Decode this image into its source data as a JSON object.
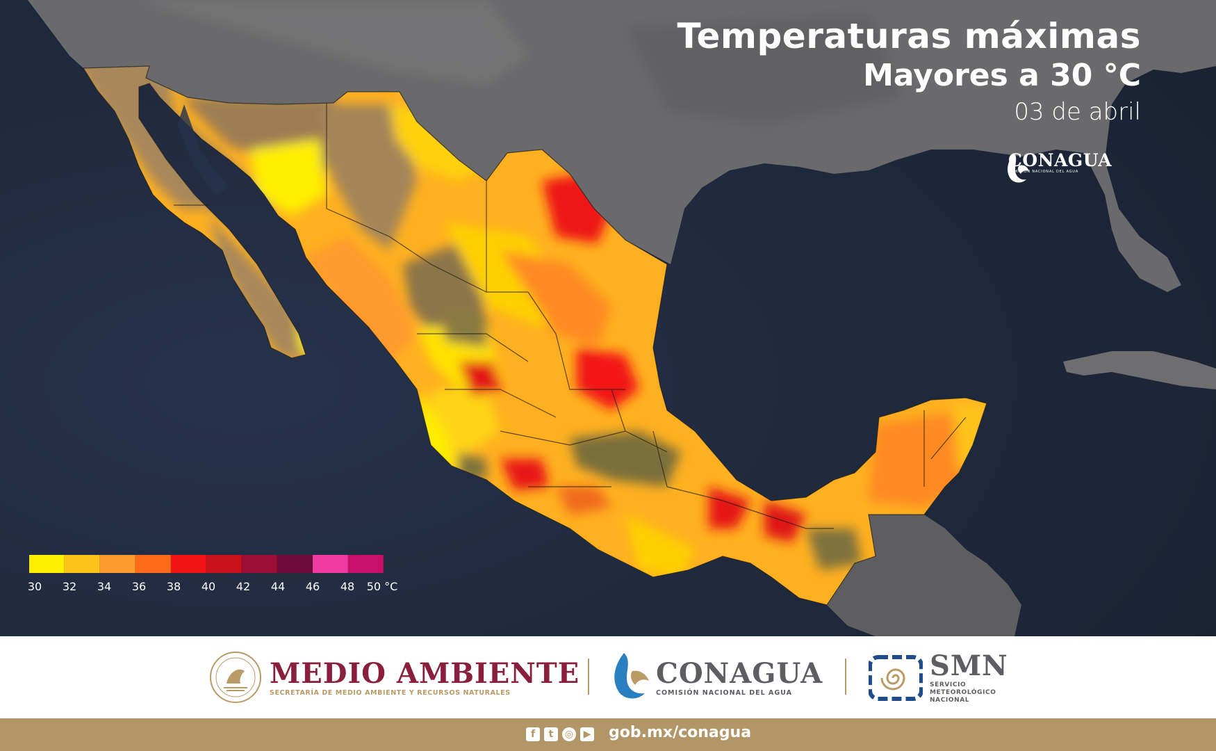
{
  "header": {
    "title": "Temperaturas máximas",
    "subtitle": "Mayores a 30 °C",
    "date": "03 de abril"
  },
  "map_logo": {
    "name": "CONAGUA",
    "tagline": "COMISIÓN NACIONAL DEL AGUA",
    "icon": "conagua-drop-icon"
  },
  "legend": {
    "unit": "°C",
    "labels": [
      "30",
      "32",
      "34",
      "36",
      "38",
      "40",
      "42",
      "44",
      "46",
      "48",
      "50 °C"
    ],
    "colors": [
      "#ffee00",
      "#ffc21a",
      "#ff9a2e",
      "#ff6a1a",
      "#f01414",
      "#c8101a",
      "#9a0e35",
      "#6c0a38",
      "#f03aa0",
      "#c8106a"
    ]
  },
  "colors": {
    "ocean": "#1f2a3d",
    "land_outside": "#6e6e6e",
    "desert": "#a8875a",
    "below_30": "#7a6e3a"
  },
  "footer": {
    "medio_ambiente": {
      "name": "MEDIO AMBIENTE",
      "sub": "SECRETARÍA DE MEDIO AMBIENTE Y RECURSOS NATURALES",
      "icon": "mexico-coat-of-arms-icon"
    },
    "conagua": {
      "name": "CONAGUA",
      "sub": "COMISIÓN NACIONAL DEL AGUA",
      "icon": "conagua-drop-icon"
    },
    "smn": {
      "name": "SMN",
      "sub1": "SERVICIO",
      "sub2": "METEOROLÓGICO",
      "sub3": "NACIONAL",
      "icon": "smn-spiral-icon"
    }
  },
  "bottom_bar": {
    "socials": [
      "facebook-icon",
      "twitter-icon",
      "instagram-icon",
      "youtube-icon"
    ],
    "url": "gob.mx/conagua"
  }
}
